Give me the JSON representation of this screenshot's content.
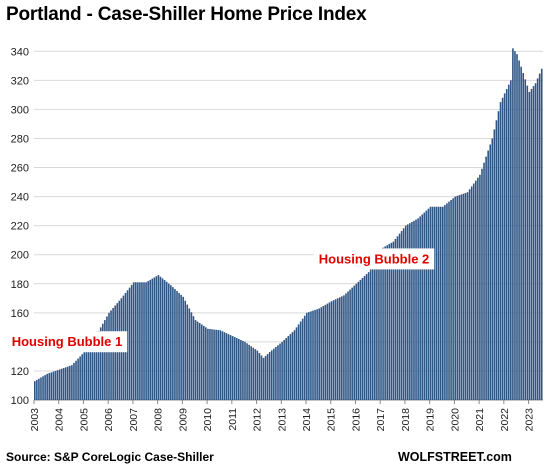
{
  "chart_data": {
    "type": "bar",
    "title": "Portland - Case-Shiller Home Price Index",
    "source": "Source: S&P CoreLogic Case-Shiller",
    "brand": "WOLFSTREET.com",
    "ylim": [
      100,
      345
    ],
    "yticks": [
      100,
      120,
      140,
      160,
      180,
      200,
      220,
      240,
      260,
      280,
      300,
      320,
      340
    ],
    "grid": true,
    "bar_color": "#2f5686",
    "annotation_color": "#e00000",
    "annotations": [
      {
        "text": "Housing Bubble 1",
        "x": "2004-05",
        "y": 137
      },
      {
        "text": "Housing Bubble 2",
        "x": "2016-10",
        "y": 194
      }
    ],
    "x_labels": [
      "2003",
      "2004",
      "2005",
      "2006",
      "2007",
      "2008",
      "2009",
      "2010",
      "2011",
      "2012",
      "2013",
      "2014",
      "2015",
      "2016",
      "2017",
      "2018",
      "2019",
      "2020",
      "2021",
      "2022",
      "2023"
    ],
    "x_start": "2003-01",
    "x_end": "2023-07",
    "anchors": [
      [
        "2003-01",
        113
      ],
      [
        "2003-07",
        118
      ],
      [
        "2004-01",
        121
      ],
      [
        "2004-07",
        124
      ],
      [
        "2005-01",
        133
      ],
      [
        "2005-07",
        145
      ],
      [
        "2006-01",
        160
      ],
      [
        "2006-07",
        170
      ],
      [
        "2007-01",
        181
      ],
      [
        "2007-07",
        181
      ],
      [
        "2008-01",
        186
      ],
      [
        "2008-07",
        179
      ],
      [
        "2009-01",
        171
      ],
      [
        "2009-07",
        155
      ],
      [
        "2010-01",
        149
      ],
      [
        "2010-07",
        148
      ],
      [
        "2011-01",
        144
      ],
      [
        "2011-07",
        140
      ],
      [
        "2012-01",
        134
      ],
      [
        "2012-04",
        129
      ],
      [
        "2012-07",
        133
      ],
      [
        "2013-01",
        140
      ],
      [
        "2013-07",
        148
      ],
      [
        "2014-01",
        160
      ],
      [
        "2014-07",
        163
      ],
      [
        "2015-01",
        168
      ],
      [
        "2015-07",
        172
      ],
      [
        "2016-01",
        180
      ],
      [
        "2016-07",
        188
      ],
      [
        "2017-01",
        204
      ],
      [
        "2017-07",
        209
      ],
      [
        "2018-01",
        220
      ],
      [
        "2018-07",
        225
      ],
      [
        "2019-01",
        233
      ],
      [
        "2019-07",
        233
      ],
      [
        "2020-01",
        240
      ],
      [
        "2020-07",
        243
      ],
      [
        "2021-01",
        255
      ],
      [
        "2021-07",
        280
      ],
      [
        "2021-11",
        305
      ],
      [
        "2022-04",
        320
      ],
      [
        "2022-05",
        342
      ],
      [
        "2022-07",
        338
      ],
      [
        "2022-10",
        325
      ],
      [
        "2023-01",
        312
      ],
      [
        "2023-04",
        318
      ],
      [
        "2023-07",
        328
      ]
    ]
  }
}
